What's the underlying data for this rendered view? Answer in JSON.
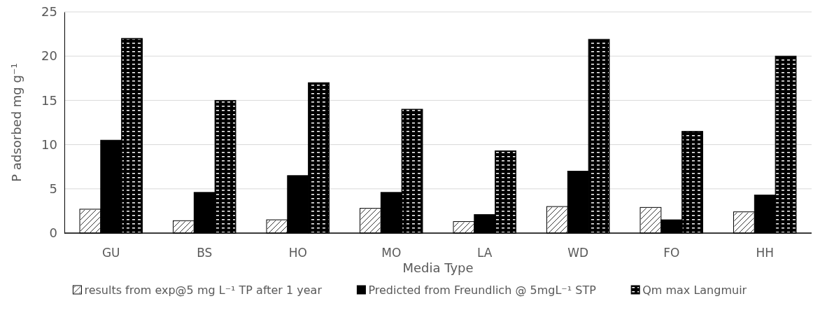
{
  "chart_data": {
    "type": "bar",
    "xlabel": "Media Type",
    "ylabel": "P adsorbed mg g⁻¹",
    "categories": [
      "GU",
      "BS",
      "HO",
      "MO",
      "LA",
      "WD",
      "FO",
      "HH"
    ],
    "series": [
      {
        "name": "results from exp@5 mg L⁻¹ TP after 1 year",
        "color": "#ffffff",
        "values": [
          2.7,
          1.4,
          1.5,
          2.8,
          1.3,
          3.0,
          2.9,
          2.4
        ]
      },
      {
        "name": "Predicted from Freundlich @ 5mgL⁻¹ STP",
        "color": "#000000",
        "values": [
          10.5,
          4.6,
          6.5,
          4.6,
          2.1,
          7.0,
          1.5,
          4.3
        ]
      },
      {
        "name": "Qm max Langmuir",
        "color": "#000000",
        "values": [
          22,
          15,
          17,
          14,
          9.3,
          21.9,
          11.5,
          20
        ]
      }
    ],
    "ylim": [
      0,
      25
    ],
    "yticks": [
      0,
      5,
      10,
      15,
      20,
      25
    ],
    "grid": "y",
    "legend": "bottom"
  }
}
